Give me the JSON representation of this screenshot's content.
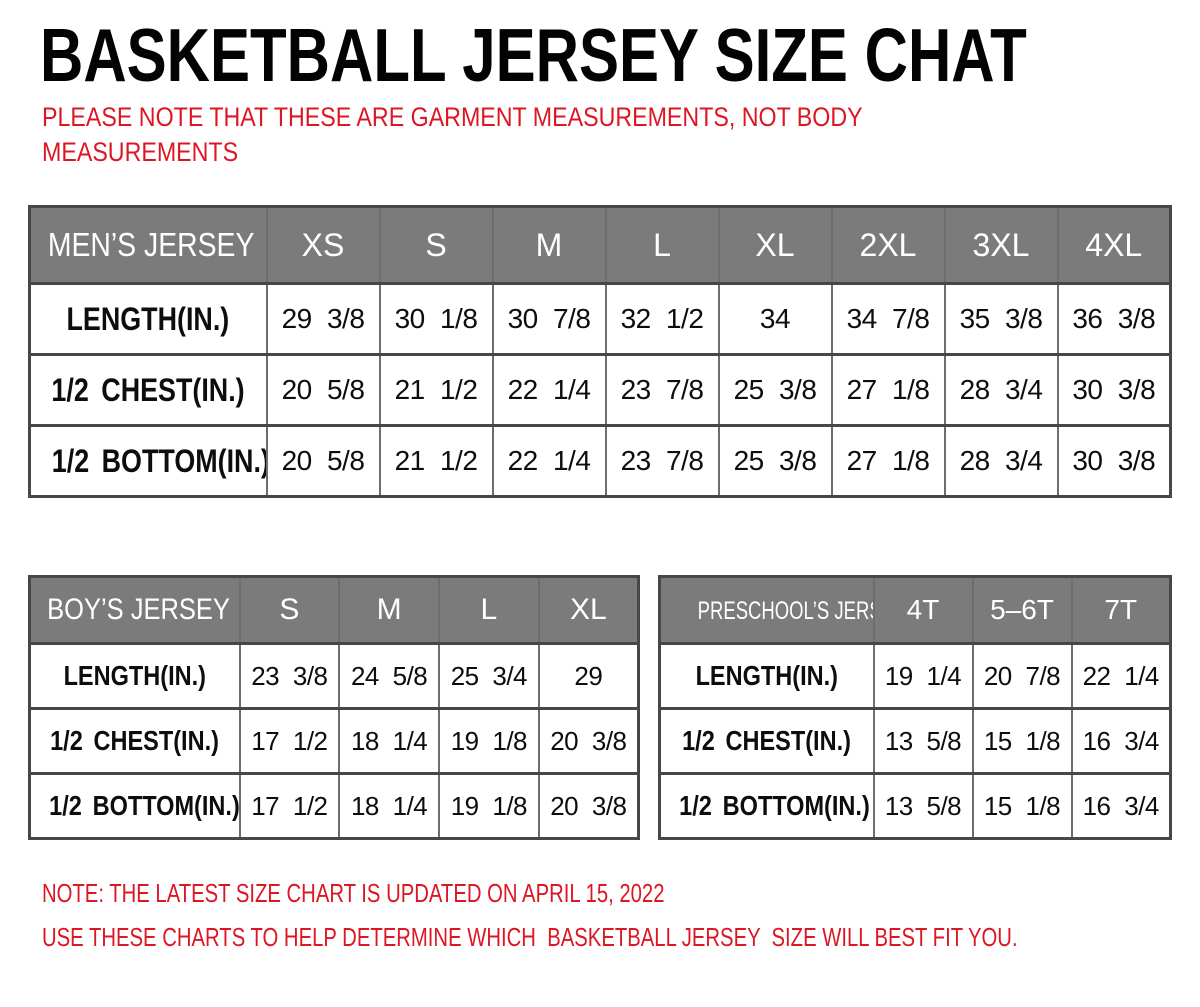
{
  "title": "BASKETBALL JERSEY SIZE CHAT",
  "intro_note": {
    "lines": [
      "PLEASE NOTE THAT THESE ARE GARMENT MEASUREMENTS, NOT BODY",
      "MEASUREMENTS"
    ]
  },
  "footer_notes": {
    "lines": [
      "NOTE: THE LATEST SIZE CHART IS UPDATED ON APRIL 15, 2022",
      "USE THESE CHARTS TO HELP DETERMINE WHICH  BASKETBALL JERSEY  SIZE WILL BEST FIT YOU."
    ]
  },
  "colors": {
    "note_red": "#dd1623",
    "table_header_gray": "#7b7b7b",
    "table_border_dark": "#474747",
    "table_border_light": "#6e6e6e",
    "header_text_white": "#ffffff",
    "body_text_black": "#0d0d0d"
  },
  "tables": {
    "mens": {
      "name": "MEN’S JERSEY",
      "sizes": [
        "XS",
        "S",
        "M",
        "L",
        "XL",
        "2XL",
        "3XL",
        "4XL"
      ],
      "rows": [
        {
          "label": "LENGTH(IN.)",
          "values": [
            "29 3/8",
            "30 1/8",
            "30 7/8",
            "32 1/2",
            "34",
            "34 7/8",
            "35 3/8",
            "36 3/8"
          ]
        },
        {
          "label": "1/2 CHEST(IN.)",
          "values": [
            "20 5/8",
            "21 1/2",
            "22 1/4",
            "23 7/8",
            "25 3/8",
            "27 1/8",
            "28 3/4",
            "30 3/8"
          ]
        },
        {
          "label": "1/2 BOTTOM(IN.)",
          "values": [
            "20 5/8",
            "21 1/2",
            "22 1/4",
            "23 7/8",
            "25 3/8",
            "27 1/8",
            "28 3/4",
            "30 3/8"
          ]
        }
      ]
    },
    "boys": {
      "name": "BOY’S JERSEY",
      "sizes": [
        "S",
        "M",
        "L",
        "XL"
      ],
      "rows": [
        {
          "label": "LENGTH(IN.)",
          "values": [
            "23 3/8",
            "24 5/8",
            "25 3/4",
            "29"
          ]
        },
        {
          "label": "1/2 CHEST(IN.)",
          "values": [
            "17 1/2",
            "18 1/4",
            "19 1/8",
            "20 3/8"
          ]
        },
        {
          "label": "1/2 BOTTOM(IN.)",
          "values": [
            "17 1/2",
            "18 1/4",
            "19 1/8",
            "20 3/8"
          ]
        }
      ]
    },
    "preschool": {
      "name": "PRESCHOOL’S JERSEY",
      "sizes": [
        "4T",
        "5–6T",
        "7T"
      ],
      "rows": [
        {
          "label": "LENGTH(IN.)",
          "values": [
            "19 1/4",
            "20 7/8",
            "22 1/4"
          ]
        },
        {
          "label": "1/2 CHEST(IN.)",
          "values": [
            "13 5/8",
            "15 1/8",
            "16 3/4"
          ]
        },
        {
          "label": "1/2 BOTTOM(IN.)",
          "values": [
            "13 5/8",
            "15 1/8",
            "16 3/4"
          ]
        }
      ]
    }
  }
}
